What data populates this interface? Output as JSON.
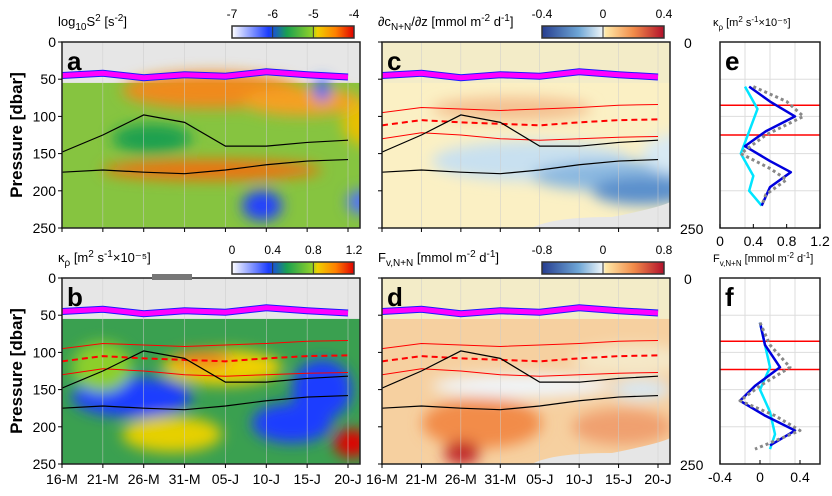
{
  "chart_data": {
    "type": "heatmap",
    "ylabel": "Pressure [dbar]",
    "yticks": [
      0,
      50,
      100,
      150,
      200,
      250
    ],
    "ylim": [
      0,
      250
    ],
    "xticks": [
      "16-M",
      "21-M",
      "26-M",
      "31-M",
      "05-J",
      "10-J",
      "15-J",
      "20-J"
    ],
    "panels": [
      {
        "id": "a",
        "row": 0,
        "col": 0,
        "label_main": "log",
        "label_sub": "10",
        "label_rest": "S",
        "label_sup": "2",
        "label_tail": " [s",
        "label_sup2": "-2",
        "label_end": "]",
        "colorbar": {
          "ticks": [
            "-7",
            "-6",
            "-5",
            "-4"
          ],
          "colormap": "jet"
        },
        "bg": "#e6e6e6",
        "show_red": false
      },
      {
        "id": "c",
        "row": 0,
        "col": 1,
        "label_main": "∂c",
        "label_sub": "N+N",
        "label_rest": "/∂z [mmol m",
        "label_sup": "-2",
        "label_tail": " d",
        "label_sup2": "-1",
        "label_end": "]",
        "colorbar": {
          "ticks": [
            "-0.4",
            "0",
            "0.4"
          ],
          "colormap": "diverging"
        },
        "bg": "#f3ecc8",
        "show_red": true
      },
      {
        "id": "b",
        "row": 1,
        "col": 0,
        "label_main": "κ",
        "label_sub": "ρ",
        "label_rest": " [m",
        "label_sup": "2",
        "label_tail": " s",
        "label_sup2": "-1",
        "label_end": "×10⁻⁵]",
        "colorbar": {
          "ticks": [
            "0",
            "0.4",
            "0.8",
            "1.2"
          ],
          "colormap": "jet"
        },
        "bg": "#e6e6e6",
        "show_red": true
      },
      {
        "id": "d",
        "row": 1,
        "col": 1,
        "label_main": "F",
        "label_sub": "v,N+N",
        "label_rest": " [mmol m",
        "label_sup": "-2",
        "label_tail": " d",
        "label_sup2": "-1",
        "label_end": "]",
        "colorbar": {
          "ticks": [
            "-0.8",
            "0",
            "0.8"
          ],
          "colormap": "diverging"
        },
        "bg": "#f3ecc8",
        "show_red": true
      }
    ],
    "contours": {
      "magenta": [
        45,
        42,
        48,
        44,
        46,
        40,
        44,
        47
      ],
      "black_upper": [
        148,
        125,
        98,
        108,
        140,
        140,
        135,
        132
      ],
      "black_lower": [
        175,
        172,
        175,
        177,
        172,
        165,
        160,
        158
      ],
      "red_upper": [
        95,
        88,
        90,
        92,
        90,
        88,
        85,
        84
      ],
      "red_dashed": [
        112,
        105,
        108,
        110,
        112,
        108,
        105,
        104
      ],
      "red_lower": [
        130,
        122,
        125,
        130,
        132,
        130,
        128,
        127
      ]
    },
    "profiles": [
      {
        "id": "e",
        "title_main": "κ",
        "title_sub": "ρ",
        "title_rest": " [m",
        "title_sup": "2",
        "title_tail": " s",
        "title_sup2": "-1",
        "title_end": "×10⁻⁵]",
        "xlim": [
          0,
          1.2
        ],
        "xticks": [
          "0",
          "0.4",
          "0.8",
          "1.2"
        ],
        "hlines": [
          85,
          125
        ],
        "series": [
          {
            "color": "#00e5ff",
            "style": "solid",
            "p": [
              60,
              90,
              120,
              150,
              180,
              200,
              220
            ],
            "v": [
              0.3,
              0.45,
              0.35,
              0.25,
              0.4,
              0.35,
              0.5
            ]
          },
          {
            "color": "#0000dd",
            "style": "solid",
            "p": [
              60,
              80,
              100,
              120,
              140,
              160,
              175,
              195,
              220
            ],
            "v": [
              0.35,
              0.6,
              0.9,
              0.55,
              0.3,
              0.6,
              0.85,
              0.6,
              0.5
            ]
          },
          {
            "color": "#888888",
            "style": "dotted",
            "p": [
              60,
              80,
              100,
              125,
              150,
              170,
              185,
              205,
              220
            ],
            "v": [
              0.4,
              0.8,
              1.0,
              0.55,
              0.25,
              0.6,
              0.8,
              0.55,
              0.5
            ]
          }
        ]
      },
      {
        "id": "f",
        "title_main": "F",
        "title_sub": "v,N+N",
        "title_rest": " [mmol m",
        "title_sup": "-2",
        "title_tail": " d",
        "title_sup2": "-1",
        "title_end": "]",
        "xlim": [
          -0.4,
          0.6
        ],
        "xticks": [
          "-0.4",
          "0",
          "0.4"
        ],
        "hlines": [
          85,
          123
        ],
        "series": [
          {
            "color": "#00e5ff",
            "style": "solid",
            "p": [
              60,
              90,
              120,
              150,
              180,
              210,
              230
            ],
            "v": [
              0.0,
              0.05,
              0.1,
              0.0,
              0.1,
              0.15,
              0.1
            ]
          },
          {
            "color": "#0000dd",
            "style": "solid",
            "p": [
              60,
              90,
              120,
              145,
              165,
              185,
              205,
              225
            ],
            "v": [
              0.0,
              0.05,
              0.2,
              -0.05,
              -0.2,
              0.05,
              0.35,
              0.1
            ]
          },
          {
            "color": "#888888",
            "style": "dotted",
            "p": [
              60,
              90,
              120,
              145,
              165,
              185,
              205,
              230
            ],
            "v": [
              0.0,
              0.1,
              0.3,
              0.0,
              -0.2,
              0.15,
              0.4,
              -0.05
            ]
          }
        ]
      }
    ]
  }
}
